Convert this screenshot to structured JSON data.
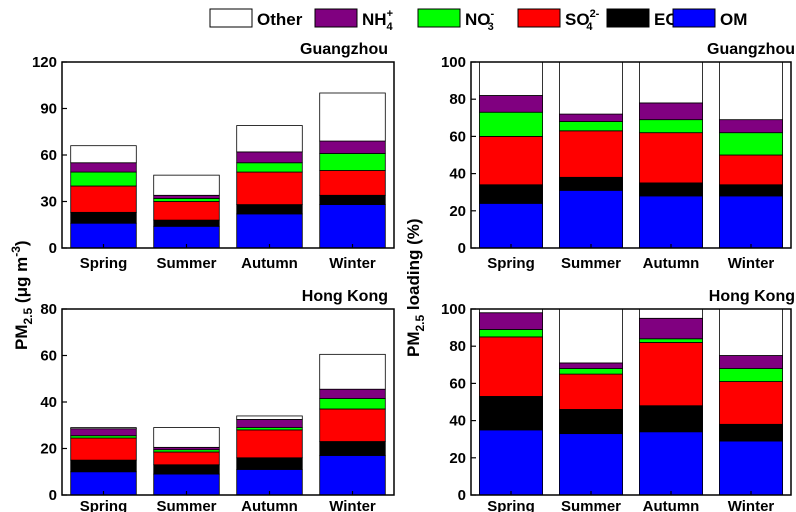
{
  "legend": {
    "items": [
      {
        "label": "Other",
        "color": "#ffffff"
      },
      {
        "label": "NH",
        "sub": "4",
        "sup": "+",
        "color": "#800080"
      },
      {
        "label": "NO",
        "sub": "3",
        "sup": "-",
        "color": "#00ff00"
      },
      {
        "label": "SO",
        "sub": "4",
        "sup": "2-",
        "color": "#ff0000"
      },
      {
        "label": "EC",
        "color": "#000000"
      },
      {
        "label": "OM",
        "color": "#0000ff"
      }
    ]
  },
  "y_labels": {
    "left": {
      "main": "PM",
      "sub": "2.5",
      "rest": " (μg m",
      "sup": "-3",
      "end": ")"
    },
    "right": {
      "main": "PM",
      "sub": "2.5",
      "rest": " loading (%)"
    }
  },
  "chart_data": [
    {
      "type": "bar",
      "stacked": true,
      "title": "Guangzhou",
      "categories": [
        "Spring",
        "Summer",
        "Autumn",
        "Winter"
      ],
      "ylim": [
        0,
        120
      ],
      "yticks": [
        0,
        30,
        60,
        90,
        120
      ],
      "series": [
        {
          "name": "OM",
          "values": [
            16,
            14,
            22,
            28
          ]
        },
        {
          "name": "EC",
          "values": [
            7,
            4,
            6,
            6
          ]
        },
        {
          "name": "SO42-",
          "values": [
            17,
            12,
            21,
            16
          ]
        },
        {
          "name": "NO3-",
          "values": [
            9,
            2,
            6,
            11
          ]
        },
        {
          "name": "NH4+",
          "values": [
            6,
            2,
            7,
            8
          ]
        },
        {
          "name": "Other",
          "values": [
            11,
            13,
            17,
            31
          ]
        }
      ]
    },
    {
      "type": "bar",
      "stacked": true,
      "title": "Guangzhou",
      "categories": [
        "Spring",
        "Summer",
        "Autumn",
        "Winter"
      ],
      "ylim": [
        0,
        100
      ],
      "yticks": [
        0,
        20,
        40,
        60,
        80,
        100
      ],
      "series": [
        {
          "name": "OM",
          "values": [
            24,
            31,
            28,
            28
          ]
        },
        {
          "name": "EC",
          "values": [
            10,
            7,
            7,
            6
          ]
        },
        {
          "name": "SO42-",
          "values": [
            26,
            25,
            27,
            16
          ]
        },
        {
          "name": "NO3-",
          "values": [
            13,
            5,
            7,
            12
          ]
        },
        {
          "name": "NH4+",
          "values": [
            9,
            4,
            9,
            7
          ]
        },
        {
          "name": "Other",
          "values": [
            18,
            28,
            22,
            31
          ]
        }
      ]
    },
    {
      "type": "bar",
      "stacked": true,
      "title": "Hong Kong",
      "categories": [
        "Spring",
        "Summer",
        "Autumn",
        "Winter"
      ],
      "ylim": [
        0,
        80
      ],
      "yticks": [
        0,
        20,
        40,
        60,
        80
      ],
      "series": [
        {
          "name": "OM",
          "values": [
            10,
            9,
            11,
            17
          ]
        },
        {
          "name": "EC",
          "values": [
            5,
            4,
            5,
            6
          ]
        },
        {
          "name": "SO42-",
          "values": [
            9.5,
            5.5,
            12,
            14
          ]
        },
        {
          "name": "NO3-",
          "values": [
            1,
            1,
            1,
            4.5
          ]
        },
        {
          "name": "NH4+",
          "values": [
            3,
            1,
            3.5,
            4
          ]
        },
        {
          "name": "Other",
          "values": [
            0.5,
            8.5,
            1.5,
            15
          ]
        }
      ]
    },
    {
      "type": "bar",
      "stacked": true,
      "title": "Hong Kong",
      "categories": [
        "Spring",
        "Summer",
        "Autumn",
        "Winter"
      ],
      "ylim": [
        0,
        100
      ],
      "yticks": [
        0,
        20,
        40,
        60,
        80,
        100
      ],
      "series": [
        {
          "name": "OM",
          "values": [
            35,
            33,
            34,
            29
          ]
        },
        {
          "name": "EC",
          "values": [
            18,
            13,
            14,
            9
          ]
        },
        {
          "name": "SO42-",
          "values": [
            32,
            19,
            34,
            23
          ]
        },
        {
          "name": "NO3-",
          "values": [
            4,
            3,
            2,
            7
          ]
        },
        {
          "name": "NH4+",
          "values": [
            9,
            3,
            11,
            7
          ]
        },
        {
          "name": "Other",
          "values": [
            2,
            29,
            5,
            25
          ]
        }
      ]
    }
  ]
}
